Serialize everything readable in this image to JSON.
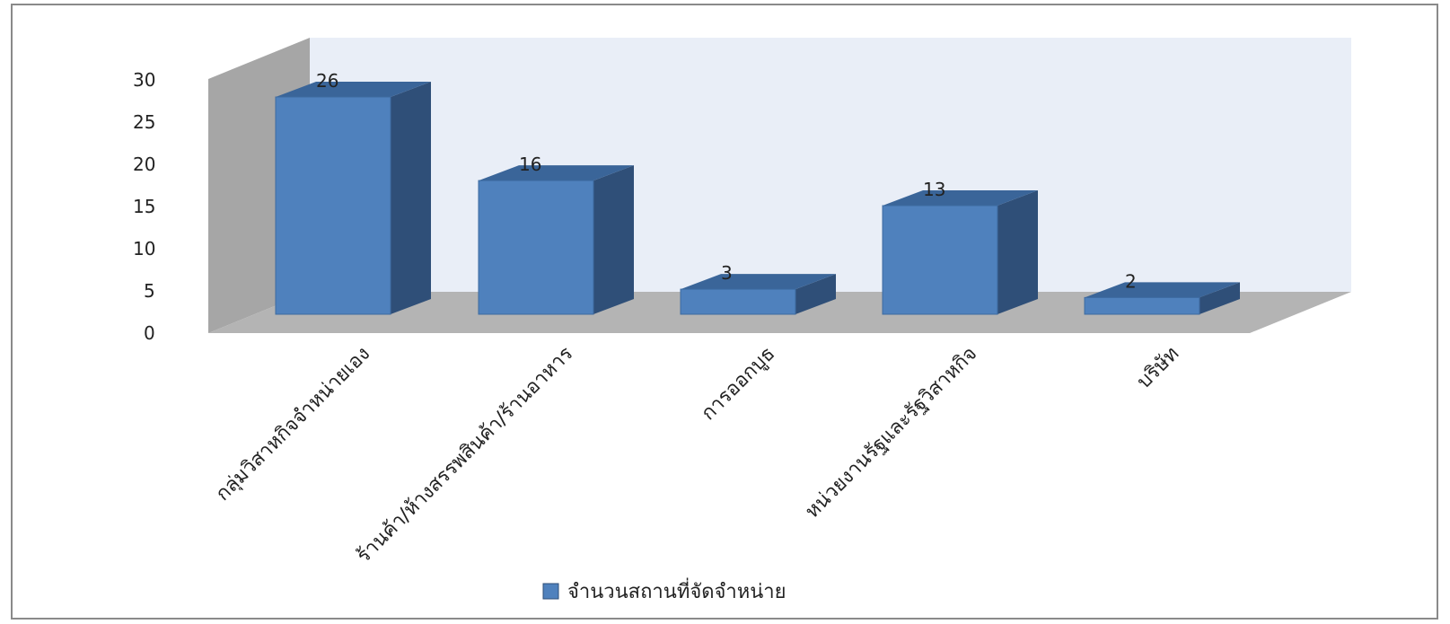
{
  "chart_data": {
    "type": "bar",
    "categories": [
      "กลุ่มวิสาหกิจจำหน่ายเอง",
      "ร้านค้า/ห้างสรรพสินค้า/ร้านอาหาร",
      "การออกบูธ",
      "หน่วยงานรัฐและรัฐวิสาหกิจ",
      "บริษัท"
    ],
    "series": [
      {
        "name": "จำนวนสถานที่จัดจำหน่าย",
        "values": [
          26,
          16,
          3,
          13,
          2
        ]
      }
    ],
    "data_labels": [
      "26",
      "16",
      "3",
      "13",
      "2"
    ],
    "y_ticks": [
      "0",
      "5",
      "10",
      "15",
      "20",
      "25",
      "30"
    ],
    "ylim": [
      0,
      30
    ],
    "style": "3d-column",
    "legend_position": "bottom",
    "colors": {
      "bar_front": "#4f81bd",
      "bar_side": "#2f4f78",
      "bar_top": "#3a6599",
      "back_wall": "#e9eef7",
      "side_wall": "#a6a6a6",
      "floor": "#b4b4b4"
    }
  }
}
